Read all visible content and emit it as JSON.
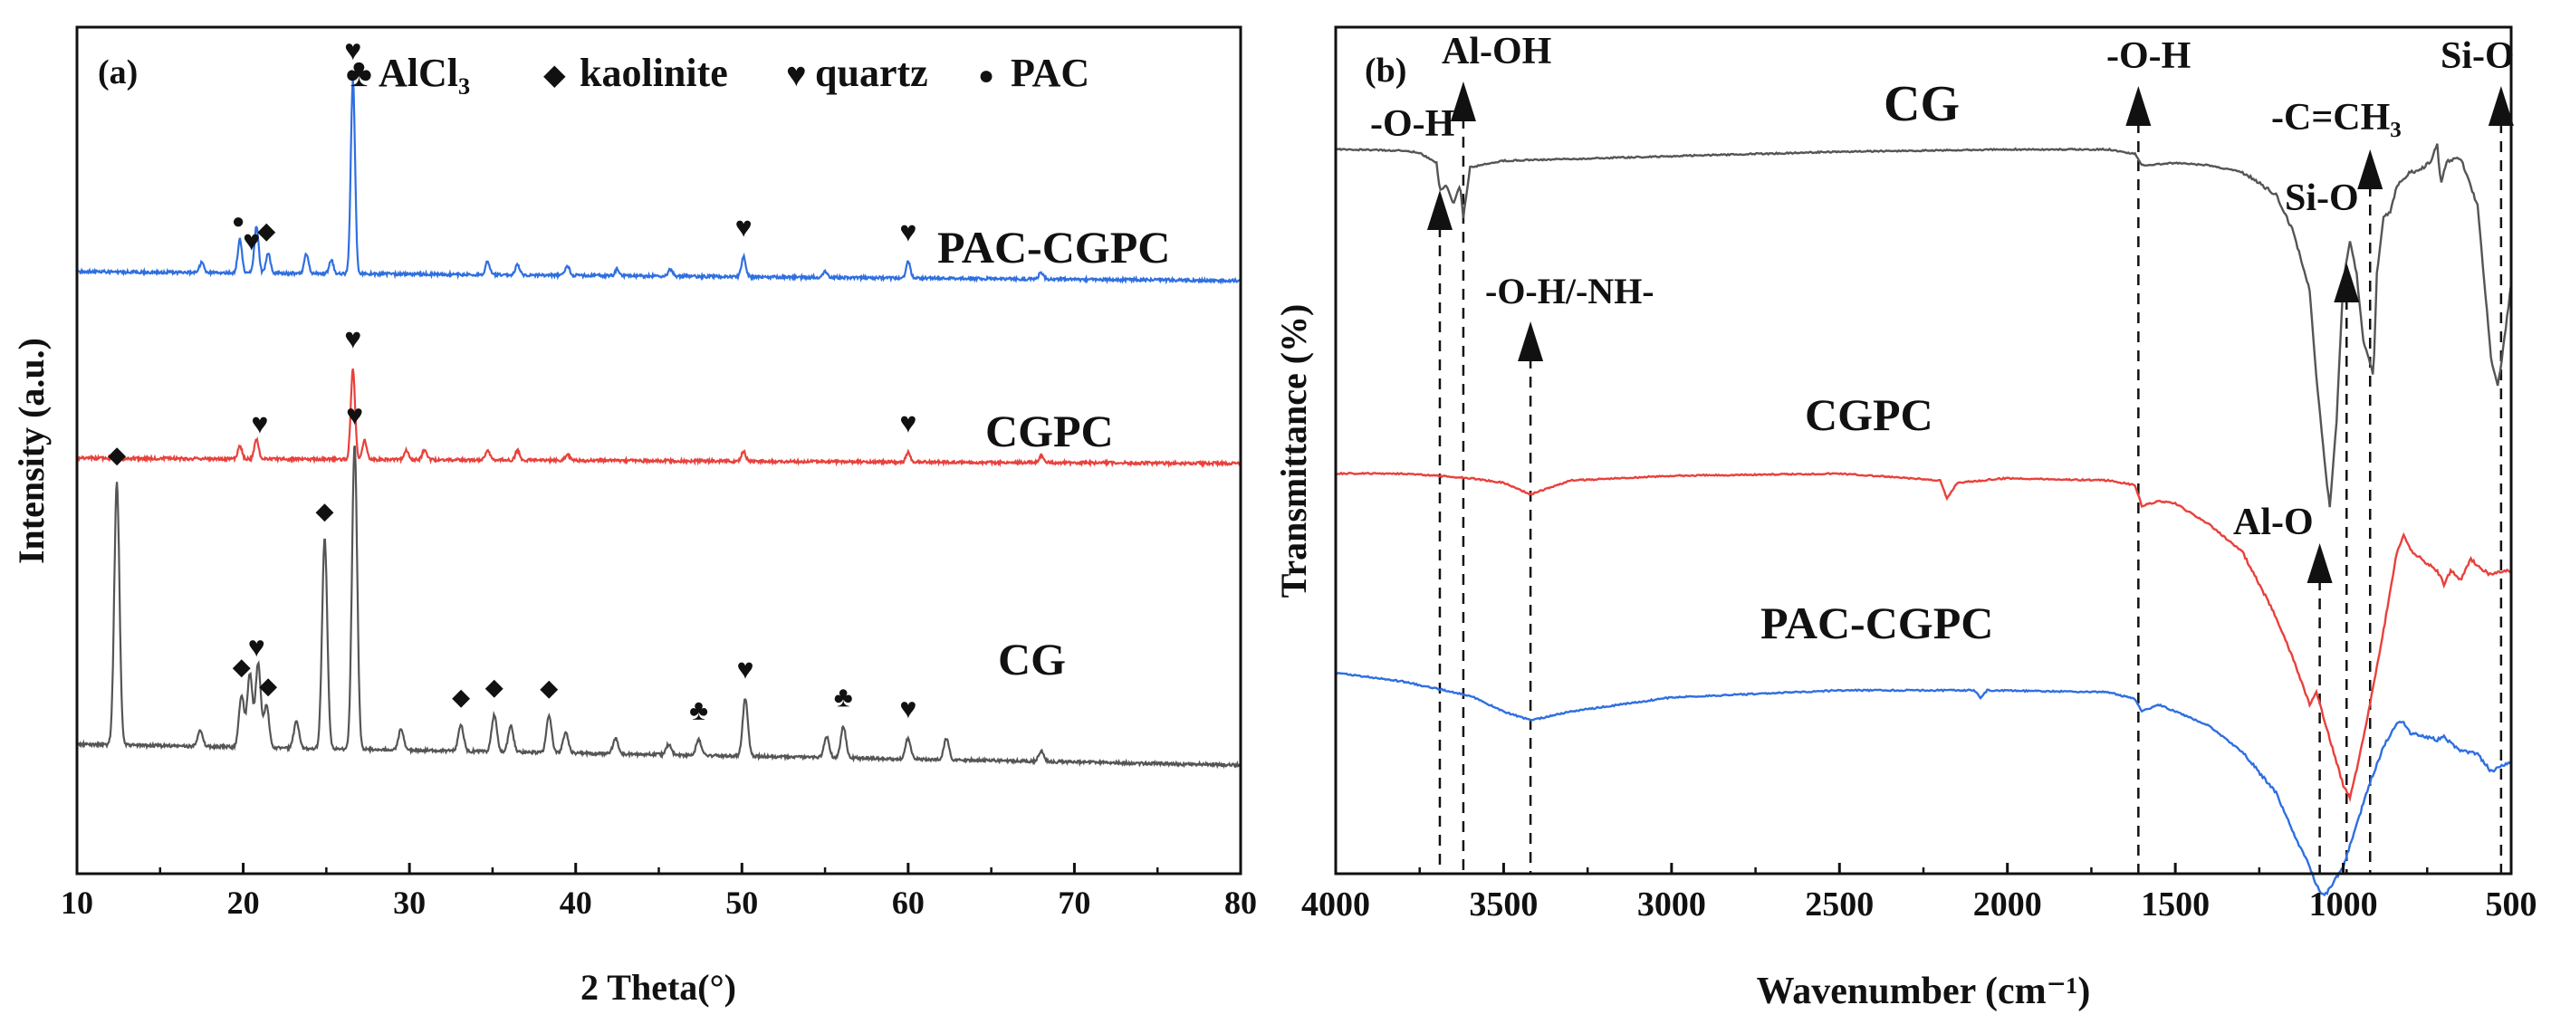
{
  "colors": {
    "CG": "#555555",
    "CGPC": "#e8413c",
    "PAC-CGPC": "#2f6fe0",
    "axis": "#111111"
  },
  "symbols": {
    "AlCl3": "♣",
    "kaolinite": "◆",
    "quartz": "♥",
    "PAC": "●"
  },
  "chart_data": [
    {
      "type": "line",
      "panel_label": "(a)",
      "xlabel": "2 Theta(°)",
      "ylabel": "Intensity (a.u.)",
      "xlim": [
        10,
        80
      ],
      "x_ticks": [
        "10",
        "20",
        "30",
        "40",
        "50",
        "60",
        "70",
        "80"
      ],
      "legend": [
        {
          "symbol": "♣",
          "label": "AlCl₃"
        },
        {
          "symbol": "◆",
          "label": "kaolinite"
        },
        {
          "symbol": "♥",
          "label": "quartz"
        },
        {
          "symbol": "●",
          "label": "PAC"
        }
      ],
      "series": [
        {
          "name": "PAC-CGPC",
          "peaks": [
            [
              17.5,
              3
            ],
            [
              19.8,
              10
            ],
            [
              20.8,
              14
            ],
            [
              21.5,
              6
            ],
            [
              23.8,
              6
            ],
            [
              25.3,
              4
            ],
            [
              26.6,
              58
            ],
            [
              34.7,
              4
            ],
            [
              36.5,
              3
            ],
            [
              39.5,
              3
            ],
            [
              42.5,
              2
            ],
            [
              45.7,
              2
            ],
            [
              50.1,
              6
            ],
            [
              55,
              2
            ],
            [
              60,
              5
            ],
            [
              68,
              2
            ]
          ]
        },
        {
          "name": "CGPC",
          "peaks": [
            [
              19.8,
              4
            ],
            [
              20.8,
              6
            ],
            [
              26.6,
              28
            ],
            [
              27.3,
              6
            ],
            [
              29.8,
              3
            ],
            [
              30.9,
              3
            ],
            [
              34.7,
              3
            ],
            [
              36.5,
              3
            ],
            [
              39.5,
              2
            ],
            [
              50.1,
              3
            ],
            [
              60,
              3
            ],
            [
              68,
              2
            ]
          ]
        },
        {
          "name": "CG",
          "peaks": [
            [
              12.4,
              50
            ],
            [
              17.4,
              3
            ],
            [
              19.9,
              10
            ],
            [
              20.4,
              14
            ],
            [
              20.9,
              16
            ],
            [
              21.4,
              8
            ],
            [
              23.2,
              5
            ],
            [
              24.9,
              40
            ],
            [
              26.7,
              58
            ],
            [
              29.5,
              4
            ],
            [
              33.1,
              5
            ],
            [
              35.1,
              7
            ],
            [
              36.1,
              5
            ],
            [
              38.4,
              7
            ],
            [
              39.4,
              4
            ],
            [
              42.4,
              3
            ],
            [
              45.6,
              2
            ],
            [
              47.4,
              3
            ],
            [
              50.2,
              11
            ],
            [
              55.1,
              4
            ],
            [
              56.1,
              6
            ],
            [
              60,
              4
            ],
            [
              62.3,
              4
            ],
            [
              68,
              2
            ]
          ]
        }
      ],
      "series_labels": [
        "PAC-CGPC",
        "CGPC",
        "CG"
      ],
      "annotations": [
        {
          "series": "PAC-CGPC",
          "x": 19.7,
          "symbol": "●"
        },
        {
          "series": "PAC-CGPC",
          "x": 20.5,
          "symbol": "♥"
        },
        {
          "series": "PAC-CGPC",
          "x": 21.4,
          "symbol": "◆"
        },
        {
          "series": "PAC-CGPC",
          "x": 26.6,
          "symbol": "♥"
        },
        {
          "series": "PAC-CGPC",
          "x": 50.1,
          "symbol": "♥"
        },
        {
          "series": "PAC-CGPC",
          "x": 60,
          "symbol": "♥"
        },
        {
          "series": "CGPC",
          "x": 21,
          "symbol": "♥"
        },
        {
          "series": "CGPC",
          "x": 26.6,
          "symbol": "♥"
        },
        {
          "series": "CGPC",
          "x": 60,
          "symbol": "♥"
        },
        {
          "series": "CG",
          "x": 12.4,
          "symbol": "◆"
        },
        {
          "series": "CG",
          "x": 19.9,
          "symbol": "◆"
        },
        {
          "series": "CG",
          "x": 20.8,
          "symbol": "♥"
        },
        {
          "series": "CG",
          "x": 21.5,
          "symbol": "◆"
        },
        {
          "series": "CG",
          "x": 24.9,
          "symbol": "◆"
        },
        {
          "series": "CG",
          "x": 26.7,
          "symbol": "♥"
        },
        {
          "series": "CG",
          "x": 33.1,
          "symbol": "◆"
        },
        {
          "series": "CG",
          "x": 35.1,
          "symbol": "◆"
        },
        {
          "series": "CG",
          "x": 38.4,
          "symbol": "◆"
        },
        {
          "series": "CG",
          "x": 47.4,
          "symbol": "♣"
        },
        {
          "series": "CG",
          "x": 50.2,
          "symbol": "♥"
        },
        {
          "series": "CG",
          "x": 56.1,
          "symbol": "♣"
        },
        {
          "series": "CG",
          "x": 60,
          "symbol": "♥"
        }
      ]
    },
    {
      "type": "line",
      "panel_label": "(b)",
      "xlabel": "Wavenumber (cm⁻¹)",
      "ylabel": "Transmittance (%)",
      "xlim": [
        4000,
        500
      ],
      "x_ticks": [
        "4000",
        "3500",
        "3000",
        "2500",
        "2000",
        "1500",
        "1000",
        "500"
      ],
      "series": [
        {
          "name": "CG",
          "points": [
            [
              4000,
              0
            ],
            [
              3800,
              -0.5
            ],
            [
              3750,
              -1.5
            ],
            [
              3700,
              -6
            ],
            [
              3690,
              -18
            ],
            [
              3670,
              -16
            ],
            [
              3650,
              -24
            ],
            [
              3630,
              -16
            ],
            [
              3620,
              -30
            ],
            [
              3600,
              -8
            ],
            [
              3500,
              -5
            ],
            [
              3000,
              -3
            ],
            [
              2500,
              -1
            ],
            [
              2000,
              0
            ],
            [
              1700,
              0
            ],
            [
              1620,
              -2
            ],
            [
              1600,
              -7
            ],
            [
              1500,
              -6
            ],
            [
              1400,
              -7
            ],
            [
              1300,
              -10
            ],
            [
              1200,
              -20
            ],
            [
              1150,
              -36
            ],
            [
              1100,
              -62
            ],
            [
              1080,
              -100
            ],
            [
              1050,
              -146
            ],
            [
              1040,
              -158
            ],
            [
              1020,
              -120
            ],
            [
              1000,
              -58
            ],
            [
              980,
              -40
            ],
            [
              960,
              -55
            ],
            [
              940,
              -85
            ],
            [
              910,
              -100
            ],
            [
              900,
              -55
            ],
            [
              880,
              -30
            ],
            [
              860,
              -28
            ],
            [
              840,
              -16
            ],
            [
              800,
              -10
            ],
            [
              780,
              -10
            ],
            [
              760,
              -8
            ],
            [
              740,
              -5
            ],
            [
              720,
              2
            ],
            [
              710,
              -15
            ],
            [
              690,
              -5
            ],
            [
              650,
              -4
            ],
            [
              600,
              -25
            ],
            [
              580,
              -58
            ],
            [
              560,
              -92
            ],
            [
              540,
              -105
            ],
            [
              530,
              -95
            ],
            [
              500,
              -60
            ]
          ]
        },
        {
          "name": "CGPC",
          "points": [
            [
              4000,
              0
            ],
            [
              3800,
              0
            ],
            [
              3600,
              -2
            ],
            [
              3500,
              -4
            ],
            [
              3420,
              -9
            ],
            [
              3300,
              -3
            ],
            [
              3000,
              -1
            ],
            [
              2500,
              0
            ],
            [
              2200,
              -3
            ],
            [
              2180,
              -11
            ],
            [
              2150,
              -4
            ],
            [
              2000,
              -2
            ],
            [
              1700,
              -3
            ],
            [
              1620,
              -5
            ],
            [
              1600,
              -14
            ],
            [
              1550,
              -12
            ],
            [
              1500,
              -13
            ],
            [
              1400,
              -22
            ],
            [
              1300,
              -34
            ],
            [
              1200,
              -62
            ],
            [
              1150,
              -80
            ],
            [
              1100,
              -100
            ],
            [
              1080,
              -95
            ],
            [
              1050,
              -110
            ],
            [
              1000,
              -135
            ],
            [
              980,
              -140
            ],
            [
              960,
              -128
            ],
            [
              920,
              -100
            ],
            [
              880,
              -68
            ],
            [
              840,
              -34
            ],
            [
              820,
              -27
            ],
            [
              800,
              -33
            ],
            [
              760,
              -38
            ],
            [
              720,
              -42
            ],
            [
              700,
              -48
            ],
            [
              680,
              -42
            ],
            [
              650,
              -46
            ],
            [
              620,
              -37
            ],
            [
              600,
              -40
            ],
            [
              560,
              -44
            ],
            [
              520,
              -42
            ],
            [
              500,
              -43
            ]
          ]
        },
        {
          "name": "PAC-CGPC",
          "points": [
            [
              4000,
              0
            ],
            [
              3800,
              -5
            ],
            [
              3600,
              -13
            ],
            [
              3500,
              -22
            ],
            [
              3420,
              -27
            ],
            [
              3300,
              -22
            ],
            [
              3000,
              -14
            ],
            [
              2500,
              -10
            ],
            [
              2100,
              -10
            ],
            [
              2080,
              -14
            ],
            [
              2060,
              -10
            ],
            [
              1700,
              -11
            ],
            [
              1620,
              -15
            ],
            [
              1600,
              -22
            ],
            [
              1550,
              -18
            ],
            [
              1500,
              -22
            ],
            [
              1400,
              -30
            ],
            [
              1300,
              -45
            ],
            [
              1200,
              -68
            ],
            [
              1150,
              -90
            ],
            [
              1100,
              -110
            ],
            [
              1080,
              -120
            ],
            [
              1060,
              -126
            ],
            [
              1050,
              -125
            ],
            [
              1000,
              -110
            ],
            [
              960,
              -86
            ],
            [
              920,
              -62
            ],
            [
              880,
              -42
            ],
            [
              840,
              -28
            ],
            [
              820,
              -28
            ],
            [
              800,
              -34
            ],
            [
              760,
              -36
            ],
            [
              720,
              -38
            ],
            [
              700,
              -36
            ],
            [
              680,
              -40
            ],
            [
              650,
              -44
            ],
            [
              600,
              -46
            ],
            [
              560,
              -56
            ],
            [
              520,
              -52
            ],
            [
              500,
              -50
            ]
          ]
        }
      ],
      "series_labels": [
        "CG",
        "CGPC",
        "PAC-CGPC"
      ],
      "annotations": [
        {
          "label": "-O-H",
          "x": 3690
        },
        {
          "label": "Al-OH",
          "x": 3620
        },
        {
          "label": "-O-H/-NH-",
          "x": 3420
        },
        {
          "label": "-O-H",
          "x": 1610
        },
        {
          "label": "Al-O",
          "x": 1070
        },
        {
          "label": "Si-O",
          "x": 990
        },
        {
          "label": "-C=CH₃",
          "x": 920
        },
        {
          "label": "Si-O",
          "x": 530
        }
      ]
    }
  ]
}
